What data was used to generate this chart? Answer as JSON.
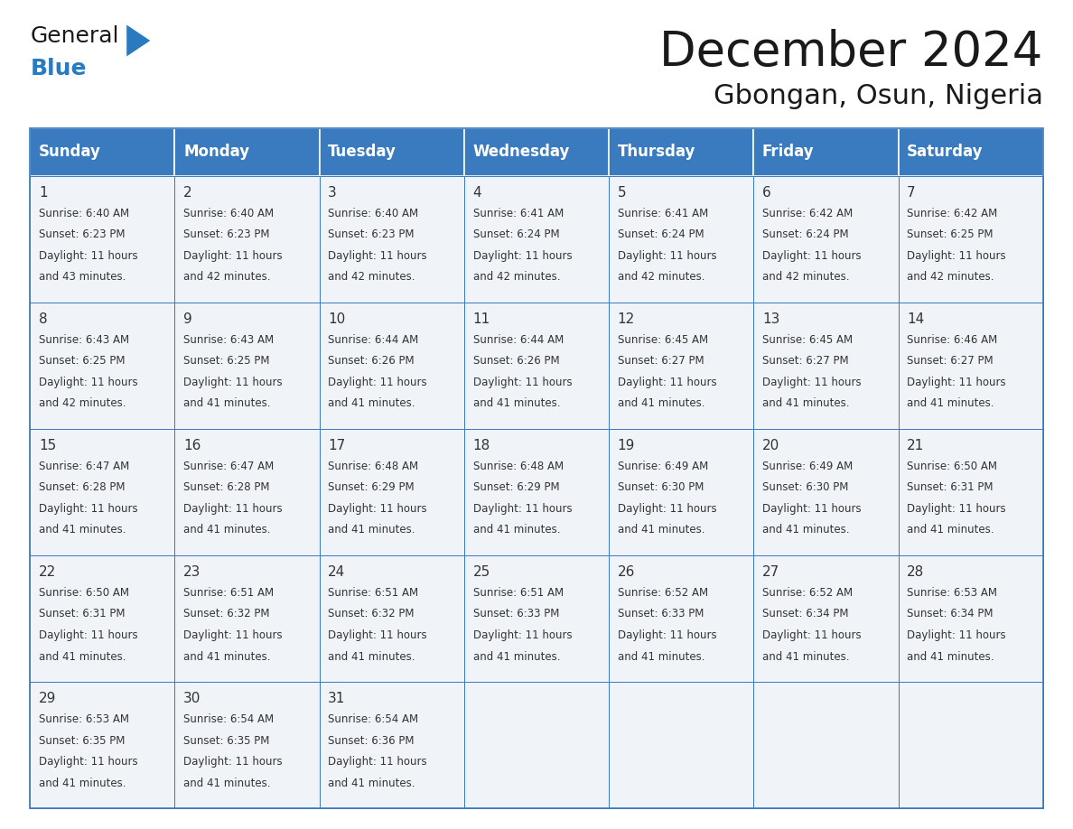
{
  "title": "December 2024",
  "subtitle": "Gbongan, Osun, Nigeria",
  "header_bg_color": "#3a7abf",
  "header_text_color": "#ffffff",
  "cell_border_color": "#3a7abf",
  "cell_bg_color": "#f0f4f8",
  "day_number_color": "#333333",
  "cell_text_color": "#333333",
  "background_color": "#ffffff",
  "days_of_week": [
    "Sunday",
    "Monday",
    "Tuesday",
    "Wednesday",
    "Thursday",
    "Friday",
    "Saturday"
  ],
  "calendar_data": [
    [
      {
        "day": 1,
        "sunrise": "6:40 AM",
        "sunset": "6:23 PM",
        "daylight_suffix": "43 minutes."
      },
      {
        "day": 2,
        "sunrise": "6:40 AM",
        "sunset": "6:23 PM",
        "daylight_suffix": "42 minutes."
      },
      {
        "day": 3,
        "sunrise": "6:40 AM",
        "sunset": "6:23 PM",
        "daylight_suffix": "42 minutes."
      },
      {
        "day": 4,
        "sunrise": "6:41 AM",
        "sunset": "6:24 PM",
        "daylight_suffix": "42 minutes."
      },
      {
        "day": 5,
        "sunrise": "6:41 AM",
        "sunset": "6:24 PM",
        "daylight_suffix": "42 minutes."
      },
      {
        "day": 6,
        "sunrise": "6:42 AM",
        "sunset": "6:24 PM",
        "daylight_suffix": "42 minutes."
      },
      {
        "day": 7,
        "sunrise": "6:42 AM",
        "sunset": "6:25 PM",
        "daylight_suffix": "42 minutes."
      }
    ],
    [
      {
        "day": 8,
        "sunrise": "6:43 AM",
        "sunset": "6:25 PM",
        "daylight_suffix": "42 minutes."
      },
      {
        "day": 9,
        "sunrise": "6:43 AM",
        "sunset": "6:25 PM",
        "daylight_suffix": "41 minutes."
      },
      {
        "day": 10,
        "sunrise": "6:44 AM",
        "sunset": "6:26 PM",
        "daylight_suffix": "41 minutes."
      },
      {
        "day": 11,
        "sunrise": "6:44 AM",
        "sunset": "6:26 PM",
        "daylight_suffix": "41 minutes."
      },
      {
        "day": 12,
        "sunrise": "6:45 AM",
        "sunset": "6:27 PM",
        "daylight_suffix": "41 minutes."
      },
      {
        "day": 13,
        "sunrise": "6:45 AM",
        "sunset": "6:27 PM",
        "daylight_suffix": "41 minutes."
      },
      {
        "day": 14,
        "sunrise": "6:46 AM",
        "sunset": "6:27 PM",
        "daylight_suffix": "41 minutes."
      }
    ],
    [
      {
        "day": 15,
        "sunrise": "6:47 AM",
        "sunset": "6:28 PM",
        "daylight_suffix": "41 minutes."
      },
      {
        "day": 16,
        "sunrise": "6:47 AM",
        "sunset": "6:28 PM",
        "daylight_suffix": "41 minutes."
      },
      {
        "day": 17,
        "sunrise": "6:48 AM",
        "sunset": "6:29 PM",
        "daylight_suffix": "41 minutes."
      },
      {
        "day": 18,
        "sunrise": "6:48 AM",
        "sunset": "6:29 PM",
        "daylight_suffix": "41 minutes."
      },
      {
        "day": 19,
        "sunrise": "6:49 AM",
        "sunset": "6:30 PM",
        "daylight_suffix": "41 minutes."
      },
      {
        "day": 20,
        "sunrise": "6:49 AM",
        "sunset": "6:30 PM",
        "daylight_suffix": "41 minutes."
      },
      {
        "day": 21,
        "sunrise": "6:50 AM",
        "sunset": "6:31 PM",
        "daylight_suffix": "41 minutes."
      }
    ],
    [
      {
        "day": 22,
        "sunrise": "6:50 AM",
        "sunset": "6:31 PM",
        "daylight_suffix": "41 minutes."
      },
      {
        "day": 23,
        "sunrise": "6:51 AM",
        "sunset": "6:32 PM",
        "daylight_suffix": "41 minutes."
      },
      {
        "day": 24,
        "sunrise": "6:51 AM",
        "sunset": "6:32 PM",
        "daylight_suffix": "41 minutes."
      },
      {
        "day": 25,
        "sunrise": "6:51 AM",
        "sunset": "6:33 PM",
        "daylight_suffix": "41 minutes."
      },
      {
        "day": 26,
        "sunrise": "6:52 AM",
        "sunset": "6:33 PM",
        "daylight_suffix": "41 minutes."
      },
      {
        "day": 27,
        "sunrise": "6:52 AM",
        "sunset": "6:34 PM",
        "daylight_suffix": "41 minutes."
      },
      {
        "day": 28,
        "sunrise": "6:53 AM",
        "sunset": "6:34 PM",
        "daylight_suffix": "41 minutes."
      }
    ],
    [
      {
        "day": 29,
        "sunrise": "6:53 AM",
        "sunset": "6:35 PM",
        "daylight_suffix": "41 minutes."
      },
      {
        "day": 30,
        "sunrise": "6:54 AM",
        "sunset": "6:35 PM",
        "daylight_suffix": "41 minutes."
      },
      {
        "day": 31,
        "sunrise": "6:54 AM",
        "sunset": "6:36 PM",
        "daylight_suffix": "41 minutes."
      },
      null,
      null,
      null,
      null
    ]
  ],
  "logo_general_color": "#1a1a1a",
  "logo_blue_color": "#2a7abf",
  "logo_triangle_color": "#2a7abf",
  "title_fontsize": 38,
  "subtitle_fontsize": 22,
  "header_fontsize": 12,
  "day_num_fontsize": 11,
  "cell_text_fontsize": 8.5
}
